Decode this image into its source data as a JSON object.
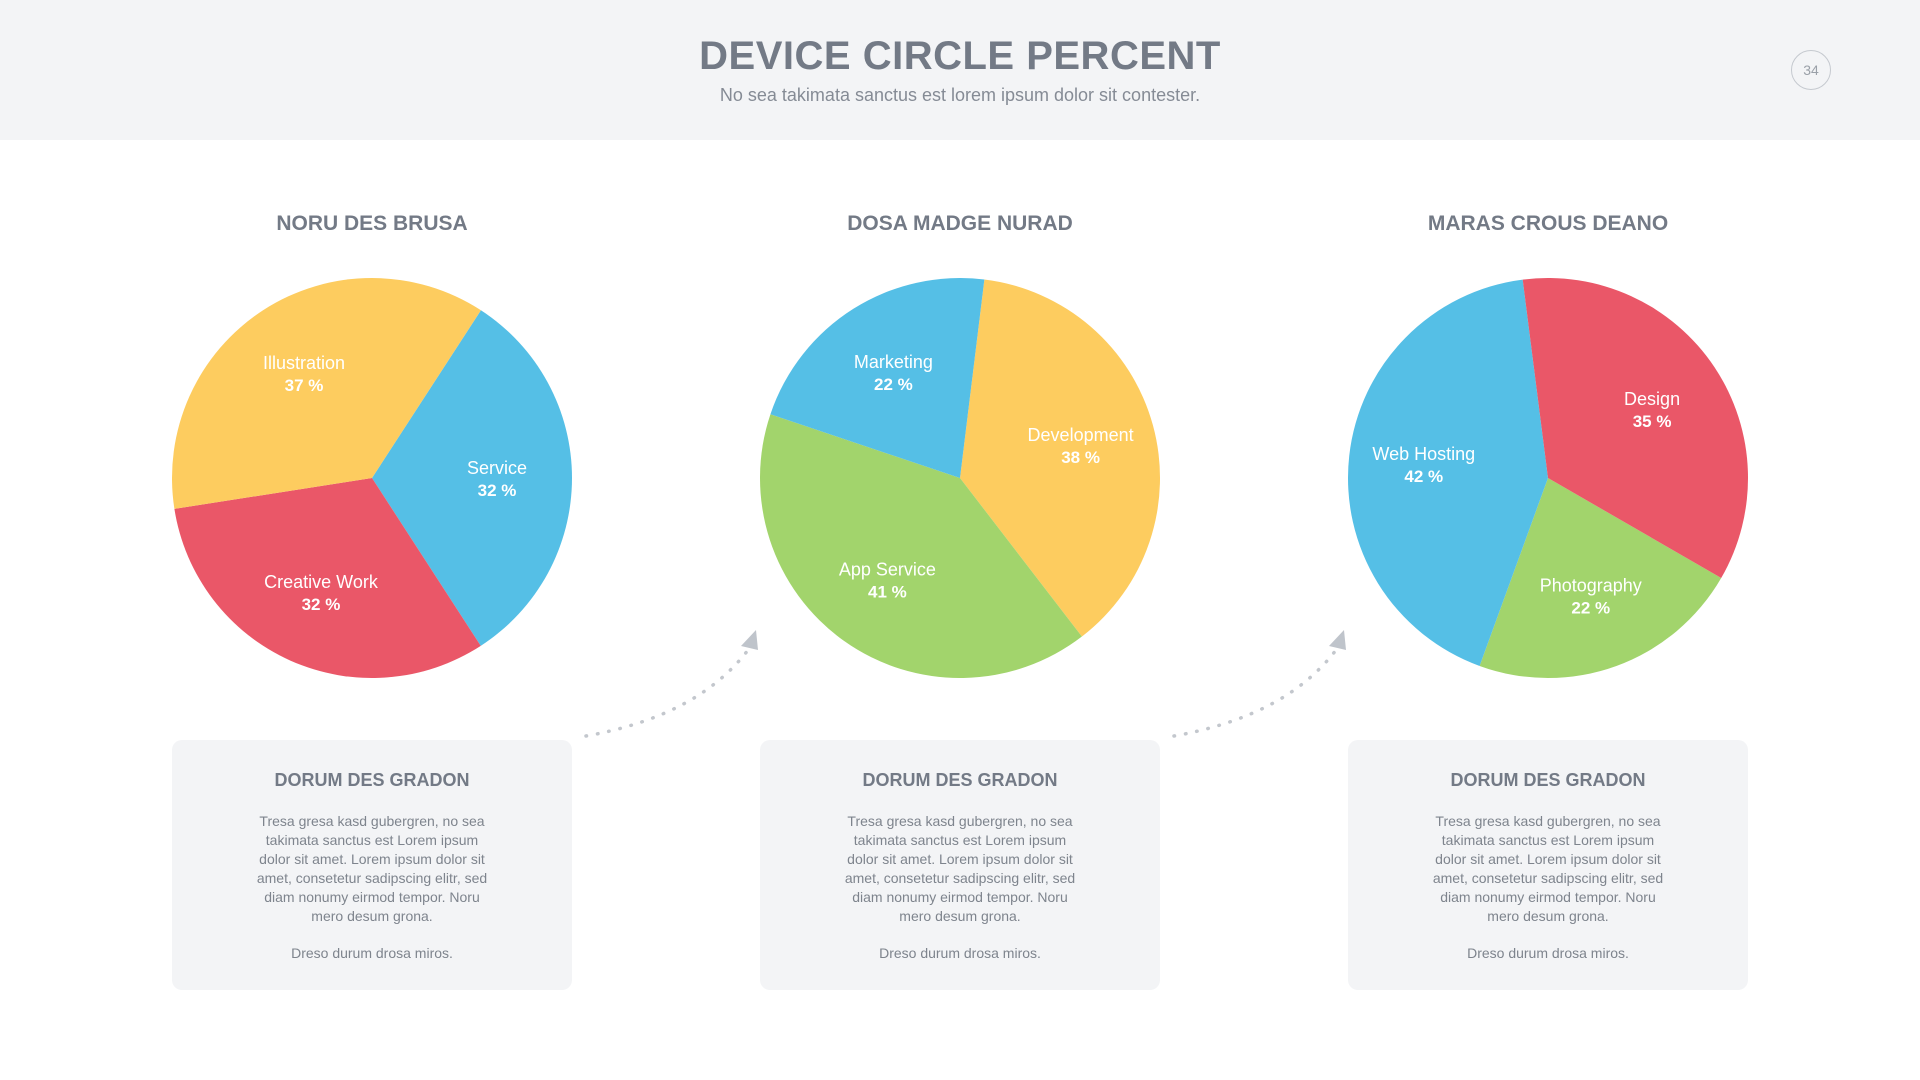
{
  "header": {
    "title": "DEVICE CIRCLE PERCENT",
    "subtitle": "No sea takimata sanctus est lorem ipsum dolor sit contester.",
    "page_number": "34"
  },
  "colors": {
    "yellow": "#fdcc5f",
    "blue": "#55bfe6",
    "red": "#ea5768",
    "green": "#a2d46c"
  },
  "chart_data": [
    {
      "type": "pie",
      "title": "NORU DES BRUSA",
      "slices": [
        {
          "label": "Service",
          "value": 32,
          "value_label": "32 %",
          "color": "#55bfe6"
        },
        {
          "label": "Creative Work",
          "value": 32,
          "value_label": "32 %",
          "color": "#ea5768"
        },
        {
          "label": "Illustration",
          "value": 37,
          "value_label": "37 %",
          "color": "#fdcc5f"
        }
      ]
    },
    {
      "type": "pie",
      "title": "DOSA MADGE NURAD",
      "slices": [
        {
          "label": "Development",
          "value": 38,
          "value_label": "38 %",
          "color": "#fdcc5f"
        },
        {
          "label": "App Service",
          "value": 41,
          "value_label": "41 %",
          "color": "#a2d46c"
        },
        {
          "label": "Marketing",
          "value": 22,
          "value_label": "22 %",
          "color": "#55bfe6"
        }
      ]
    },
    {
      "type": "pie",
      "title": "MARAS CROUS DEANO",
      "slices": [
        {
          "label": "Photography",
          "value": 22,
          "value_label": "22 %",
          "color": "#a2d46c"
        },
        {
          "label": "Web Hosting",
          "value": 42,
          "value_label": "42 %",
          "color": "#55bfe6"
        },
        {
          "label": "Design",
          "value": 35,
          "value_label": "35 %",
          "color": "#ea5768"
        }
      ]
    }
  ],
  "cards": [
    {
      "title": "DORUM DES GRADON",
      "body": "Tresa gresa kasd gubergren, no sea takimata sanctus est Lorem ipsum dolor sit amet. Lorem ipsum dolor sit amet, consetetur sadipscing elitr, sed diam nonumy eirmod tempor. Noru mero desum grona.",
      "footer": "Dreso durum drosa miros."
    },
    {
      "title": "DORUM DES GRADON",
      "body": "Tresa gresa kasd gubergren, no sea takimata sanctus est Lorem ipsum dolor sit amet. Lorem ipsum dolor sit amet, consetetur sadipscing elitr, sed diam nonumy eirmod tempor. Noru mero desum grona.",
      "footer": "Dreso durum drosa miros."
    },
    {
      "title": "DORUM DES GRADON",
      "body": "Tresa gresa kasd gubergren, no sea takimata sanctus est Lorem ipsum dolor sit amet. Lorem ipsum dolor sit amet, consetetur sadipscing elitr, sed diam nonumy eirmod tempor. Noru mero desum grona.",
      "footer": "Dreso durum drosa miros."
    }
  ]
}
